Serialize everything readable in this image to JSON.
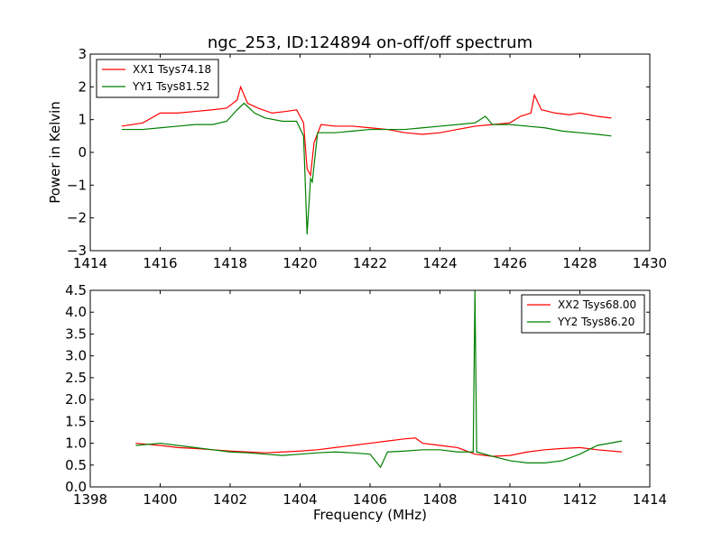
{
  "chart_data": [
    {
      "type": "line",
      "title": "ngc_253, ID:124894 on-off/off spectrum",
      "xlabel": "",
      "ylabel": "Power in Kelvin",
      "xlim": [
        1414,
        1430
      ],
      "ylim": [
        -3,
        3
      ],
      "xticks": [
        "1414",
        "1416",
        "1418",
        "1420",
        "1422",
        "1424",
        "1426",
        "1428",
        "1430"
      ],
      "yticks": [
        "−3",
        "−2",
        "−1",
        "0",
        "1",
        "2",
        "3"
      ],
      "grid": false,
      "legend": "upper-left",
      "series": [
        {
          "name": "XX1 Tsys74.18",
          "color": "#ff0000",
          "x": [
            1414.9,
            1415.5,
            1416.0,
            1416.5,
            1417.0,
            1417.5,
            1417.9,
            1418.2,
            1418.3,
            1418.5,
            1418.8,
            1419.2,
            1419.6,
            1419.9,
            1420.1,
            1420.2,
            1420.3,
            1420.4,
            1420.6,
            1421.0,
            1421.5,
            1422.0,
            1422.5,
            1423.0,
            1423.5,
            1424.0,
            1424.5,
            1425.0,
            1425.5,
            1426.0,
            1426.3,
            1426.6,
            1426.7,
            1426.9,
            1427.3,
            1427.7,
            1428.0,
            1428.5,
            1428.9
          ],
          "y": [
            0.8,
            0.9,
            1.2,
            1.2,
            1.25,
            1.3,
            1.35,
            1.6,
            2.0,
            1.5,
            1.35,
            1.2,
            1.25,
            1.3,
            0.9,
            -0.5,
            -0.7,
            0.3,
            0.85,
            0.8,
            0.8,
            0.75,
            0.7,
            0.6,
            0.55,
            0.6,
            0.7,
            0.8,
            0.85,
            0.9,
            1.1,
            1.2,
            1.75,
            1.3,
            1.2,
            1.15,
            1.2,
            1.1,
            1.05
          ]
        },
        {
          "name": "YY1 Tsys81.52",
          "color": "#008000",
          "x": [
            1414.9,
            1415.5,
            1416.0,
            1416.5,
            1417.0,
            1417.5,
            1417.9,
            1418.2,
            1418.4,
            1418.7,
            1419.0,
            1419.5,
            1419.9,
            1420.1,
            1420.2,
            1420.3,
            1420.35,
            1420.5,
            1421.0,
            1421.5,
            1422.0,
            1422.5,
            1423.0,
            1423.5,
            1424.0,
            1424.5,
            1425.0,
            1425.3,
            1425.5,
            1426.0,
            1426.5,
            1427.0,
            1427.5,
            1428.0,
            1428.5,
            1428.9
          ],
          "y": [
            0.7,
            0.7,
            0.75,
            0.8,
            0.85,
            0.85,
            0.95,
            1.3,
            1.5,
            1.2,
            1.05,
            0.95,
            0.95,
            0.5,
            -2.5,
            -0.8,
            -0.9,
            0.6,
            0.6,
            0.65,
            0.7,
            0.7,
            0.7,
            0.75,
            0.8,
            0.85,
            0.9,
            1.1,
            0.85,
            0.85,
            0.8,
            0.75,
            0.65,
            0.6,
            0.55,
            0.5
          ]
        }
      ]
    },
    {
      "type": "line",
      "title": "",
      "xlabel": "Frequency (MHz)",
      "ylabel": "",
      "xlim": [
        1398,
        1414
      ],
      "ylim": [
        0,
        4.5
      ],
      "xticks": [
        "1398",
        "1400",
        "1402",
        "1404",
        "1406",
        "1408",
        "1410",
        "1412",
        "1414"
      ],
      "yticks": [
        "0.0",
        "0.5",
        "1.0",
        "1.5",
        "2.0",
        "2.5",
        "3.0",
        "3.5",
        "4.0",
        "4.5"
      ],
      "grid": false,
      "legend": "upper-right",
      "series": [
        {
          "name": "XX2 Tsys68.00",
          "color": "#ff0000",
          "x": [
            1399.3,
            1400.0,
            1400.5,
            1401.0,
            1401.5,
            1402.0,
            1402.5,
            1403.0,
            1403.5,
            1404.0,
            1404.5,
            1405.0,
            1405.5,
            1406.0,
            1406.5,
            1407.0,
            1407.3,
            1407.5,
            1408.0,
            1408.5,
            1409.0,
            1409.5,
            1410.0,
            1410.5,
            1411.0,
            1411.5,
            1412.0,
            1412.5,
            1413.2
          ],
          "y": [
            1.0,
            0.95,
            0.9,
            0.88,
            0.85,
            0.82,
            0.8,
            0.78,
            0.8,
            0.82,
            0.85,
            0.9,
            0.95,
            1.0,
            1.05,
            1.1,
            1.12,
            1.0,
            0.95,
            0.9,
            0.75,
            0.7,
            0.72,
            0.8,
            0.85,
            0.88,
            0.9,
            0.85,
            0.8
          ]
        },
        {
          "name": "YY2 Tsys86.20",
          "color": "#008000",
          "x": [
            1399.3,
            1400.0,
            1400.5,
            1401.0,
            1401.5,
            1402.0,
            1402.5,
            1403.0,
            1403.5,
            1404.0,
            1404.5,
            1405.0,
            1405.5,
            1406.0,
            1406.3,
            1406.5,
            1407.0,
            1407.5,
            1408.0,
            1408.5,
            1408.95,
            1409.0,
            1409.05,
            1409.5,
            1410.0,
            1410.5,
            1411.0,
            1411.5,
            1412.0,
            1412.5,
            1413.2
          ],
          "y": [
            0.95,
            1.0,
            0.95,
            0.9,
            0.85,
            0.8,
            0.78,
            0.75,
            0.72,
            0.75,
            0.78,
            0.8,
            0.78,
            0.75,
            0.45,
            0.8,
            0.82,
            0.85,
            0.85,
            0.8,
            0.8,
            4.5,
            0.8,
            0.7,
            0.6,
            0.55,
            0.55,
            0.6,
            0.75,
            0.95,
            1.05
          ]
        }
      ]
    }
  ]
}
